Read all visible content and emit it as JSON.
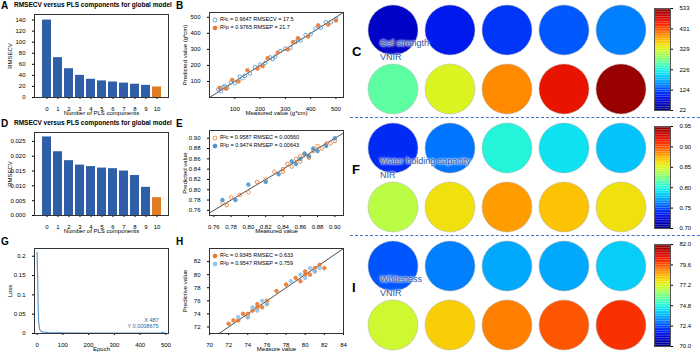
{
  "chart_data": [
    {
      "panel": "A",
      "type": "bar",
      "title": "RMSECV versus PLS components for global model",
      "x_label": "Number of PLS components",
      "y_label": "RMSECV",
      "categories": [
        0,
        1,
        2,
        3,
        4,
        5,
        6,
        7,
        8,
        9,
        10
      ],
      "values": [
        140,
        72,
        52,
        40,
        33,
        30,
        28,
        26,
        24,
        22,
        19
      ],
      "colors": [
        "#2e5fa8",
        "#2e5fa8",
        "#2e5fa8",
        "#2e5fa8",
        "#2e5fa8",
        "#2e5fa8",
        "#2e5fa8",
        "#2e5fa8",
        "#2e5fa8",
        "#2e5fa8",
        "#e07b24"
      ],
      "ylim": [
        0,
        150
      ],
      "yticks": [
        0,
        20,
        40,
        60,
        80,
        100,
        120,
        140
      ],
      "grid": false
    },
    {
      "panel": "B",
      "type": "scatter",
      "x_label": "Measured value (g*cm)",
      "y_label": "Predicted value (g*cm)",
      "xlim": [
        0,
        530
      ],
      "ylim": [
        0,
        530
      ],
      "xticks": [
        100,
        200,
        300,
        400,
        500
      ],
      "yticks": [
        100,
        200,
        300,
        400,
        500
      ],
      "legend": "top-left",
      "grid": false,
      "series": [
        {
          "name": "R²c = 0.9647  RMSECV = 17.5",
          "color": "#4a90c8",
          "marker": "open_circle",
          "x": [
            35,
            45,
            60,
            70,
            85,
            100,
            120,
            140,
            160,
            180,
            200,
            220,
            240,
            260,
            280,
            300,
            320,
            340,
            360,
            380,
            400,
            420,
            440,
            460,
            480,
            500,
            55,
            130,
            250,
            350
          ],
          "values": [
            50,
            40,
            70,
            60,
            95,
            90,
            130,
            135,
            150,
            190,
            205,
            215,
            250,
            255,
            290,
            305,
            310,
            345,
            355,
            390,
            395,
            430,
            435,
            470,
            470,
            490,
            65,
            120,
            240,
            360
          ]
        },
        {
          "name": "R²p = 0.9765  RMSEP = 21.7",
          "color": "#e8772e",
          "marker": "circle",
          "x": [
            40,
            65,
            90,
            115,
            150,
            190,
            230,
            270,
            310,
            350,
            390,
            430,
            470,
            500,
            210,
            330
          ],
          "values": [
            60,
            55,
            110,
            100,
            170,
            180,
            245,
            280,
            300,
            370,
            380,
            450,
            455,
            480,
            195,
            345
          ]
        }
      ]
    },
    {
      "panel": "D",
      "type": "bar",
      "title": "RMSECV versus PLS components for global model",
      "x_label": "Number of PLS components",
      "y_label": "RMSECV",
      "categories": [
        0,
        1,
        2,
        3,
        4,
        5,
        6,
        7,
        8,
        9,
        10
      ],
      "values": [
        0.0265,
        0.0215,
        0.0185,
        0.017,
        0.0165,
        0.016,
        0.0158,
        0.015,
        0.0135,
        0.0095,
        0.006
      ],
      "colors": [
        "#2e5fa8",
        "#2e5fa8",
        "#2e5fa8",
        "#2e5fa8",
        "#2e5fa8",
        "#2e5fa8",
        "#2e5fa8",
        "#2e5fa8",
        "#2e5fa8",
        "#2e5fa8",
        "#e07b24"
      ],
      "ylim": [
        0,
        0.028
      ],
      "yticks": [
        {
          "value": 0,
          "label": "0.000"
        },
        0.005,
        {
          "value": 0.01,
          "label": "0.010"
        },
        0.015,
        {
          "value": 0.02,
          "label": "0.020"
        },
        0.025
      ],
      "grid": false
    },
    {
      "panel": "E",
      "type": "scatter",
      "x_label": "Measured value",
      "y_label": "Predicted value",
      "xlim": [
        0.755,
        0.91
      ],
      "ylim": [
        0.75,
        0.915
      ],
      "xticks": [
        0.76,
        0.78,
        {
          "value": 0.8,
          "label": "0.80"
        },
        0.82,
        0.84,
        0.86,
        0.88,
        {
          "value": 0.9,
          "label": "0.90"
        }
      ],
      "yticks": [
        0.76,
        0.78,
        {
          "value": 0.8,
          "label": "0.80"
        },
        0.82,
        0.84,
        0.86,
        0.88,
        {
          "value": 0.9,
          "label": "0.90"
        }
      ],
      "legend": "top-left",
      "grid": false,
      "series": [
        {
          "name": "R²c = 0.9587  RMSEC = 0.00560",
          "color": "#e8772e",
          "marker": "open_circle",
          "x": [
            0.77,
            0.775,
            0.78,
            0.79,
            0.8,
            0.81,
            0.82,
            0.83,
            0.84,
            0.845,
            0.85,
            0.855,
            0.86,
            0.865,
            0.87,
            0.875,
            0.88,
            0.885,
            0.89,
            0.895,
            0.9,
            0.84,
            0.86,
            0.87
          ],
          "values": [
            0.775,
            0.77,
            0.785,
            0.79,
            0.795,
            0.815,
            0.82,
            0.835,
            0.84,
            0.85,
            0.845,
            0.86,
            0.855,
            0.87,
            0.865,
            0.875,
            0.885,
            0.88,
            0.89,
            0.89,
            0.895,
            0.835,
            0.865,
            0.862
          ]
        },
        {
          "name": "R²p = 0.9474  RMSEP = 0.00643",
          "color": "#4a90c8",
          "marker": "circle",
          "x": [
            0.77,
            0.785,
            0.8,
            0.82,
            0.835,
            0.85,
            0.86,
            0.87,
            0.875,
            0.88,
            0.89,
            0.9,
            0.855,
            0.865
          ],
          "values": [
            0.78,
            0.78,
            0.81,
            0.815,
            0.83,
            0.855,
            0.86,
            0.865,
            0.88,
            0.875,
            0.885,
            0.9,
            0.85,
            0.87
          ]
        }
      ]
    },
    {
      "panel": "G",
      "type": "line",
      "x_label": "Epoch",
      "y_label": "Loss",
      "xlim": [
        -10,
        510
      ],
      "ylim": [
        0,
        0.22
      ],
      "xticks": [
        0,
        100,
        200,
        300,
        400,
        500
      ],
      "yticks": [
        0,
        0.05,
        0.1,
        0.15,
        0.2
      ],
      "grid": false,
      "color": "#5b9bd5",
      "x": [
        0,
        2,
        4,
        6,
        10,
        20,
        50,
        100,
        200,
        300,
        400,
        487,
        500
      ],
      "values": [
        0.21,
        0.15,
        0.08,
        0.03,
        0.01,
        0.004,
        0.002,
        0.0015,
        0.0012,
        0.001,
        0.0009,
        0.0008675,
        0.00086
      ],
      "annotations": [
        {
          "x": 487,
          "y": 0.0008675,
          "text": "X 487\nY 0.0008675"
        }
      ]
    },
    {
      "panel": "H",
      "type": "scatter",
      "x_label": "Measure value",
      "y_label": "Predictive value",
      "xlim": [
        70,
        84
      ],
      "ylim": [
        71,
        84
      ],
      "xticks": [
        70,
        72,
        74,
        76,
        78,
        80,
        82,
        84
      ],
      "yticks": [
        72,
        74,
        76,
        78,
        80,
        82
      ],
      "legend": "top-left",
      "grid": false,
      "series": [
        {
          "name": "R²c = 0.9345  RMSEC = 0.633",
          "color": "#e8772e",
          "marker": "circle",
          "x": [
            72,
            72.5,
            73,
            73.5,
            74,
            74,
            74.5,
            75,
            75,
            75.5,
            76,
            76,
            79,
            79.5,
            80,
            80,
            80.5,
            81,
            81,
            81.5,
            82,
            78,
            77
          ],
          "values": [
            72.5,
            73,
            73,
            74,
            74,
            73.5,
            74.5,
            75,
            75.5,
            75,
            76,
            75.5,
            79.5,
            79,
            80,
            80.5,
            80,
            81,
            80.5,
            81.5,
            81,
            78.5,
            77.5
          ]
        },
        {
          "name": "R²p = 0.9547  RMSEP = 0.759",
          "color": "#8fc3e8",
          "marker": "circle",
          "x": [
            73,
            74,
            74.5,
            75,
            75.5,
            76,
            79.5,
            80,
            80.5,
            81,
            81.5,
            78.5
          ],
          "values": [
            73.5,
            73.5,
            75,
            74.5,
            76,
            75.5,
            80,
            79.5,
            81,
            80.5,
            81,
            79
          ]
        }
      ]
    },
    {
      "panel": "C",
      "type": "image_grid",
      "title": "Gel strength",
      "subtitle": "VNIR",
      "values": [
        [
          60,
          90,
          110,
          130,
          150
        ],
        [
          260,
          330,
          400,
          470,
          520
        ]
      ],
      "colorbar": {
        "range": [
          22,
          533
        ],
        "ticks": [
          22,
          124,
          226,
          329,
          431,
          533
        ]
      }
    },
    {
      "panel": "F",
      "type": "image_grid",
      "title": "Water holding capacity",
      "subtitle": "NIR",
      "values": [
        [
          0.74,
          0.76,
          0.8,
          0.79,
          0.78
        ],
        [
          0.84,
          0.86,
          0.88,
          0.87,
          0.86
        ]
      ],
      "colorbar": {
        "range": [
          0.7,
          0.95
        ],
        "ticks": [
          {
            "value": 0.7,
            "label": "0.70"
          },
          0.75,
          {
            "value": 0.8,
            "label": "0.80"
          },
          0.85,
          {
            "value": 0.9,
            "label": "0.90"
          },
          0.95
        ]
      }
    },
    {
      "panel": "I",
      "type": "image_grid",
      "title": "Whiteness",
      "subtitle": "VNIR",
      "values": [
        [
          72.5,
          73,
          73.5,
          73.5,
          74
        ],
        [
          77,
          78,
          79,
          79.5,
          80
        ]
      ],
      "colorbar": {
        "range": [
          70,
          82
        ],
        "ticks": [
          {
            "value": 70,
            "label": "70.0"
          },
          72.4,
          74.8,
          77.2,
          79.6,
          {
            "value": 82,
            "label": "82.0"
          }
        ]
      }
    }
  ]
}
